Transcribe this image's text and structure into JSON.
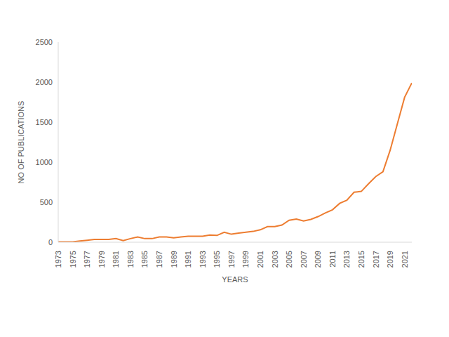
{
  "chart_data": {
    "type": "line",
    "x_label": "YEARS",
    "y_label": "NO OF PUBLICATIONS",
    "x": [
      1973,
      1974,
      1975,
      1976,
      1977,
      1978,
      1979,
      1980,
      1981,
      1982,
      1983,
      1984,
      1985,
      1986,
      1987,
      1988,
      1989,
      1990,
      1991,
      1992,
      1993,
      1994,
      1995,
      1996,
      1997,
      1998,
      1999,
      2000,
      2001,
      2002,
      2003,
      2004,
      2005,
      2006,
      2007,
      2008,
      2009,
      2010,
      2011,
      2012,
      2013,
      2014,
      2015,
      2016,
      2017,
      2018,
      2019,
      2020,
      2021,
      2022
    ],
    "values": [
      5,
      5,
      5,
      15,
      25,
      35,
      35,
      35,
      45,
      20,
      45,
      65,
      45,
      45,
      65,
      65,
      55,
      65,
      75,
      75,
      75,
      90,
      85,
      125,
      100,
      115,
      125,
      135,
      155,
      195,
      195,
      215,
      275,
      290,
      265,
      285,
      320,
      365,
      405,
      485,
      525,
      625,
      635,
      730,
      820,
      880,
      1150,
      1480,
      1810,
      1990
    ],
    "color": "#ed7d31",
    "xlim": [
      1973,
      2022
    ],
    "xticks": [
      1973,
      1975,
      1977,
      1979,
      1981,
      1983,
      1985,
      1987,
      1989,
      1991,
      1993,
      1995,
      1997,
      1999,
      2001,
      2003,
      2005,
      2007,
      2009,
      2011,
      2013,
      2015,
      2017,
      2019,
      2021
    ],
    "ylim": [
      0,
      2500
    ],
    "yticks": [
      0,
      500,
      1000,
      1500,
      2000,
      2500
    ],
    "grid": false
  }
}
